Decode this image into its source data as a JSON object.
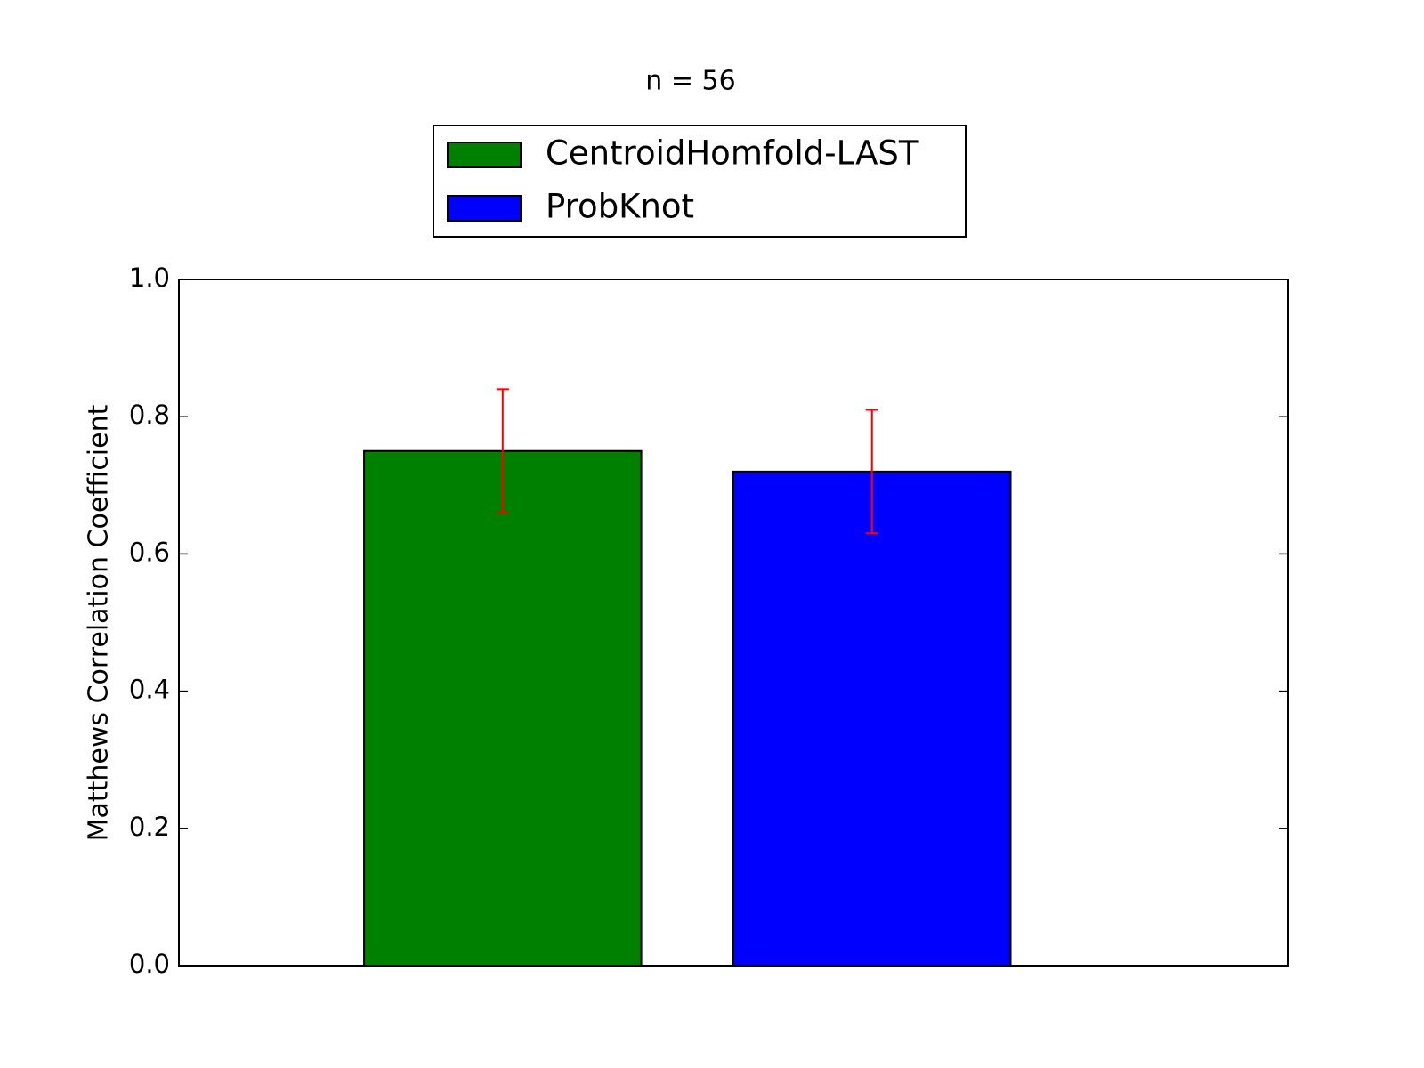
{
  "chart_data": {
    "type": "bar",
    "title": "n = 56",
    "y_label": "Matthews Correlation Coefficient",
    "series": [
      {
        "name": "CentroidHomfold-LAST",
        "color": "#008000",
        "values": [
          0.75
        ],
        "errors": [
          0.09
        ]
      },
      {
        "name": "ProbKnot",
        "color": "#0000ff",
        "values": [
          0.72
        ],
        "errors": [
          0.09
        ]
      }
    ],
    "error_color": "#ff0000",
    "ylim": [
      0,
      1
    ],
    "yticks": [
      {
        "value": 0,
        "label": "0.0"
      },
      {
        "value": 0.2,
        "label": "0.2"
      },
      {
        "value": 0.4,
        "label": "0.4"
      },
      {
        "value": 0.6,
        "label": "0.6"
      },
      {
        "value": 0.8,
        "label": "0.8"
      },
      {
        "value": 1,
        "label": "1.0"
      }
    ],
    "legend": "top"
  }
}
